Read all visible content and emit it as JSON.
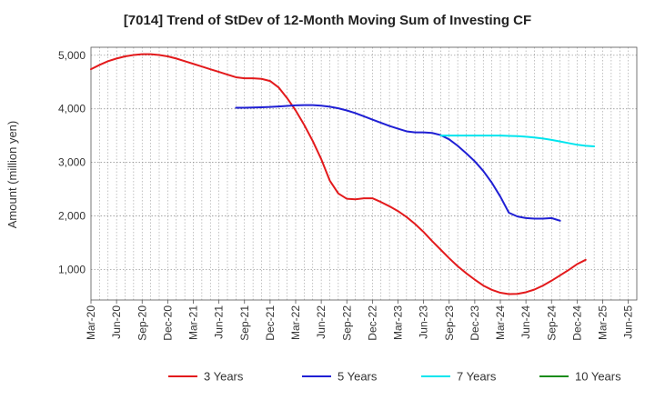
{
  "chart_data": {
    "type": "line",
    "title": "[7014]  Trend of StDev of 12-Month Moving Sum of Investing CF",
    "ylabel": "Amount (million yen)",
    "xlabel": "",
    "ylim": [
      430,
      5150
    ],
    "yticks": [
      1000,
      2000,
      3000,
      4000,
      5000
    ],
    "ytick_labels": [
      "1,000",
      "2,000",
      "3,000",
      "4,000",
      "5,000"
    ],
    "x_start": "Mar-20",
    "x_months": 64,
    "xtick_labels": [
      "Mar-20",
      "Jun-20",
      "Sep-20",
      "Dec-20",
      "Mar-21",
      "Jun-21",
      "Sep-21",
      "Dec-21",
      "Mar-22",
      "Jun-22",
      "Sep-22",
      "Dec-22",
      "Mar-23",
      "Jun-23",
      "Sep-23",
      "Dec-23",
      "Mar-24",
      "Jun-24",
      "Sep-24",
      "Dec-24",
      "Mar-25",
      "Jun-25"
    ],
    "grid": true,
    "legend_position": "bottom",
    "series": [
      {
        "name": "3 Years",
        "color": "#e31a1c",
        "start": "Mar-20",
        "values": [
          4740,
          4820,
          4890,
          4940,
          4980,
          5005,
          5020,
          5020,
          5005,
          4980,
          4940,
          4890,
          4840,
          4790,
          4740,
          4690,
          4640,
          4590,
          4570,
          4570,
          4560,
          4520,
          4400,
          4200,
          3970,
          3700,
          3400,
          3060,
          2660,
          2420,
          2320,
          2310,
          2330,
          2330,
          2260,
          2180,
          2090,
          1980,
          1850,
          1700,
          1530,
          1370,
          1210,
          1060,
          930,
          810,
          700,
          620,
          565,
          540,
          545,
          575,
          625,
          700,
          790,
          890,
          990,
          1100,
          1180
        ]
      },
      {
        "name": "5 Years",
        "color": "#1f1fd4",
        "start": "Aug-21",
        "values": [
          4020,
          4020,
          4025,
          4030,
          4035,
          4045,
          4055,
          4065,
          4070,
          4070,
          4060,
          4040,
          4010,
          3970,
          3920,
          3860,
          3800,
          3740,
          3680,
          3630,
          3580,
          3560,
          3560,
          3550,
          3510,
          3430,
          3310,
          3170,
          3020,
          2840,
          2620,
          2360,
          2060,
          1990,
          1960,
          1950,
          1950,
          1960,
          1910
        ]
      },
      {
        "name": "7 Years",
        "color": "#00e5ee",
        "start": "Aug-23",
        "values": [
          3500,
          3500,
          3500,
          3500,
          3500,
          3500,
          3500,
          3500,
          3495,
          3490,
          3480,
          3465,
          3445,
          3420,
          3390,
          3360,
          3330,
          3310,
          3300
        ]
      },
      {
        "name": "10 Years",
        "color": "#1a8c1a",
        "start": "",
        "values": []
      }
    ]
  }
}
